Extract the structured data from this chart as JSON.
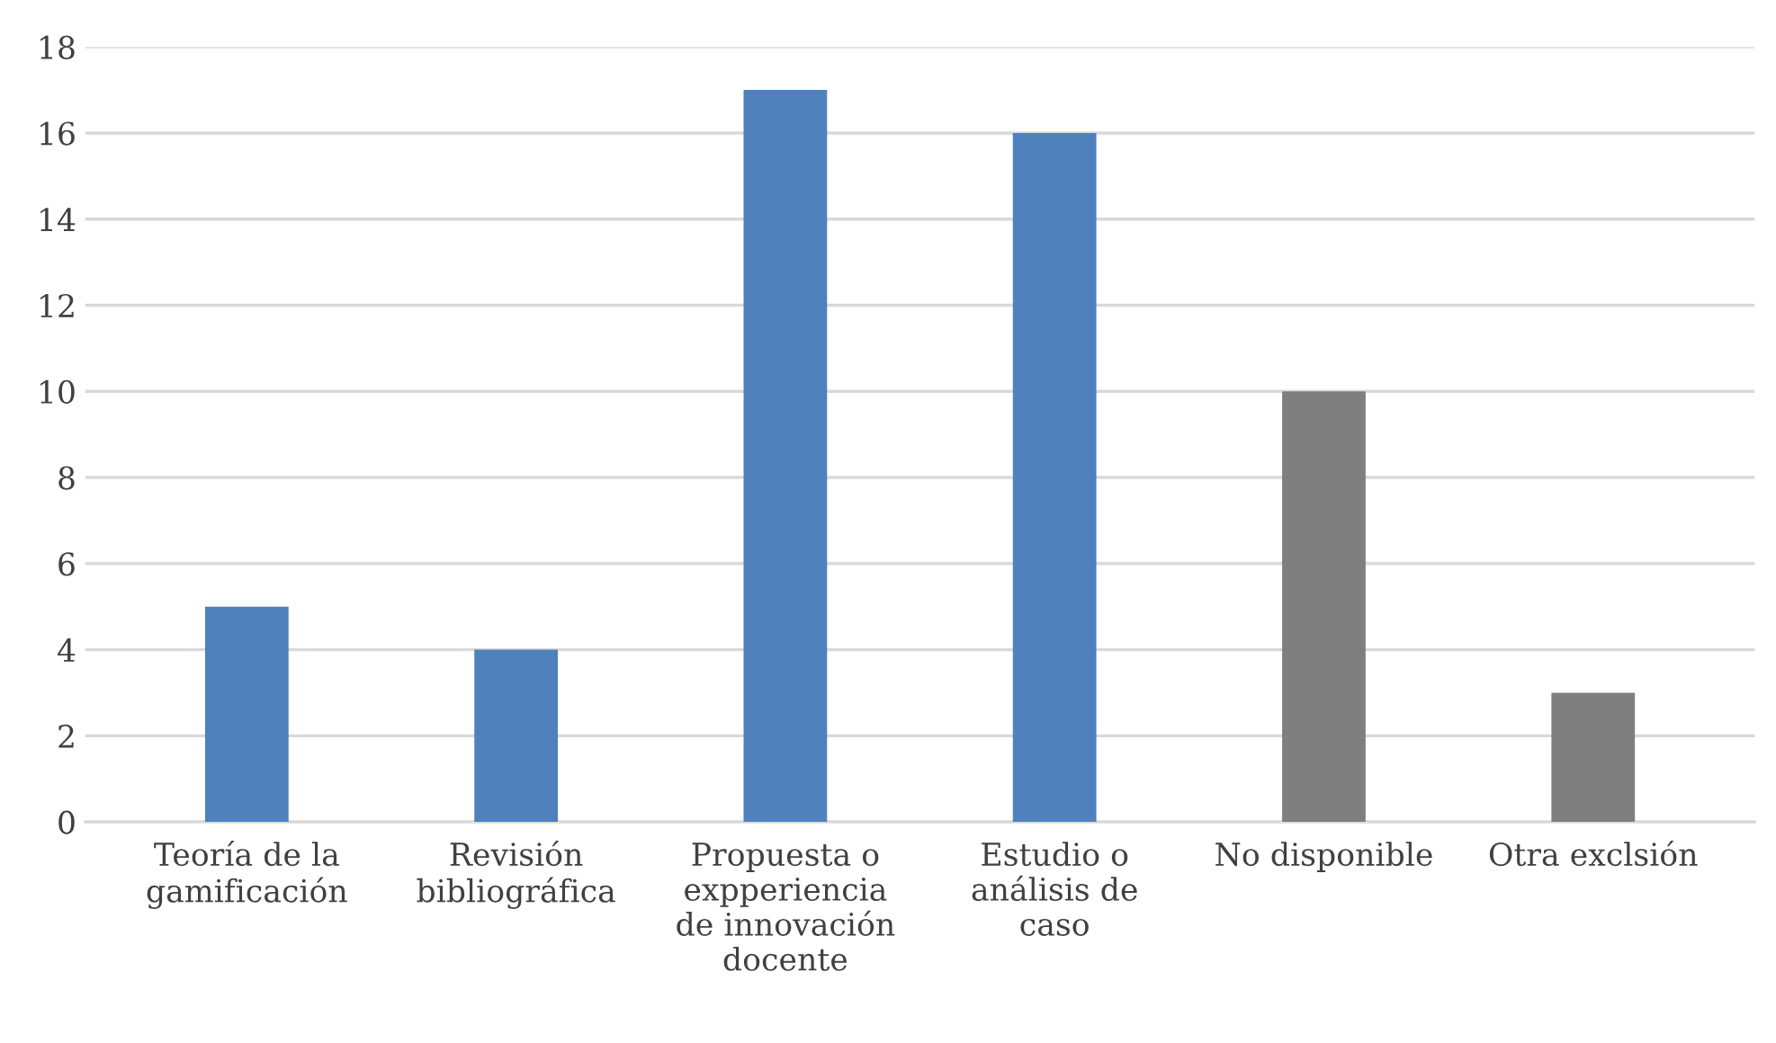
{
  "chart_data": {
    "type": "bar",
    "categories": [
      "Teoría de la\ngamificación",
      "Revisión\nbibliográfica",
      "Propuesta o\nexpperiencia\nde innovación\ndocente",
      "Estudio o\nanálisis de\ncaso",
      "No disponible",
      "Otra exclsión"
    ],
    "values": [
      5,
      4,
      17,
      16,
      10,
      3
    ],
    "colors": [
      "#4f81bd",
      "#4f81bd",
      "#4f81bd",
      "#4f81bd",
      "#7f7f7f",
      "#7f7f7f"
    ],
    "ylim": [
      0,
      18
    ],
    "yticks": [
      0,
      2,
      4,
      6,
      8,
      10,
      12,
      14,
      16,
      18
    ],
    "grid": "y",
    "legend": false
  }
}
